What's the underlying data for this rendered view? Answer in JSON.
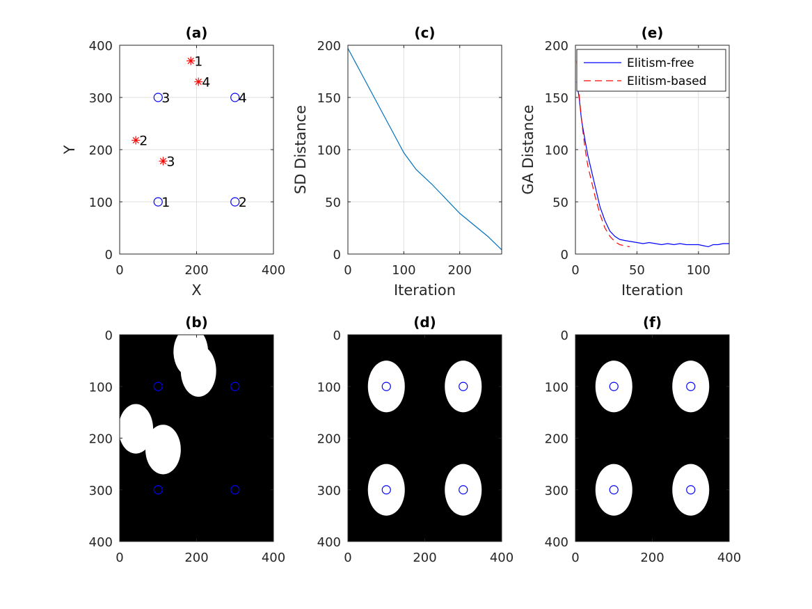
{
  "chart_data": [
    {
      "id": "a",
      "type": "scatter",
      "title": "(a)",
      "xlabel": "X",
      "ylabel": "Y",
      "xlim": [
        0,
        400
      ],
      "ylim": [
        0,
        400
      ],
      "xticks": [
        0,
        200,
        400
      ],
      "yticks": [
        0,
        100,
        200,
        300,
        400
      ],
      "grid": true,
      "series": [
        {
          "marker": "circle",
          "color": "#0000ff",
          "points": [
            {
              "x": 100,
              "y": 100,
              "label": "1"
            },
            {
              "x": 300,
              "y": 100,
              "label": "2"
            },
            {
              "x": 100,
              "y": 300,
              "label": "3"
            },
            {
              "x": 300,
              "y": 300,
              "label": "4"
            }
          ]
        },
        {
          "marker": "asterisk",
          "color": "#ff0000",
          "points": [
            {
              "x": 185,
              "y": 370,
              "label": "1"
            },
            {
              "x": 42,
              "y": 218,
              "label": "2"
            },
            {
              "x": 113,
              "y": 178,
              "label": "3"
            },
            {
              "x": 205,
              "y": 330,
              "label": "4"
            }
          ]
        }
      ]
    },
    {
      "id": "c",
      "type": "line",
      "title": "(c)",
      "xlabel": "Iteration",
      "ylabel": "SD Distance",
      "xlim": [
        0,
        275
      ],
      "ylim": [
        0,
        200
      ],
      "xticks": [
        0,
        100,
        200
      ],
      "yticks": [
        0,
        50,
        100,
        150,
        200
      ],
      "grid": true,
      "series": [
        {
          "color": "#0072bd",
          "x": [
            0,
            25,
            50,
            75,
            100,
            122,
            150,
            200,
            250,
            275
          ],
          "y": [
            197,
            172,
            147,
            122,
            97,
            81,
            67,
            39,
            17,
            4
          ]
        }
      ]
    },
    {
      "id": "e",
      "type": "line",
      "title": "(e)",
      "xlabel": "Iteration",
      "ylabel": "GA Distance",
      "xlim": [
        0,
        125
      ],
      "ylim": [
        0,
        200
      ],
      "xticks": [
        0,
        50,
        100
      ],
      "yticks": [
        0,
        50,
        100,
        150,
        200
      ],
      "grid": true,
      "legend": "top-right",
      "series": [
        {
          "name": "Elitism-free",
          "color": "#0000ff",
          "dash": "solid",
          "x": [
            1,
            3,
            5,
            8,
            10,
            13,
            16,
            20,
            24,
            28,
            32,
            36,
            40,
            45,
            50,
            55,
            60,
            65,
            70,
            75,
            80,
            85,
            90,
            95,
            100,
            104,
            108,
            112,
            116,
            120,
            125
          ],
          "y": [
            165,
            150,
            128,
            108,
            95,
            80,
            65,
            45,
            32,
            22,
            17,
            14,
            13,
            12,
            11,
            10,
            11,
            10,
            9,
            10,
            9,
            10,
            9,
            9,
            9,
            8,
            7,
            9,
            9,
            10,
            10
          ]
        },
        {
          "name": "Elitism-based",
          "color": "#ff0000",
          "dash": "dashed",
          "x": [
            1,
            2,
            4,
            6,
            8,
            10,
            13,
            16,
            20,
            24,
            28,
            32,
            36,
            40,
            44
          ],
          "y": [
            185,
            165,
            140,
            118,
            100,
            85,
            70,
            55,
            38,
            25,
            17,
            12,
            9,
            8,
            7
          ]
        }
      ]
    },
    {
      "id": "b",
      "type": "heatmap",
      "title": "(b)",
      "xlim": [
        0,
        400
      ],
      "ylim": [
        0,
        400
      ],
      "xticks": [
        0,
        200,
        400
      ],
      "yticks": [
        0,
        100,
        200,
        300,
        400
      ],
      "y_reversed": true,
      "background": "#000000",
      "blob_color": "#ffffff",
      "blobs": [
        {
          "cx": 185,
          "cy": 33,
          "rx": 45,
          "ry": 48
        },
        {
          "cx": 205,
          "cy": 70,
          "rx": 46,
          "ry": 50
        },
        {
          "cx": 42,
          "cy": 182,
          "rx": 45,
          "ry": 48
        },
        {
          "cx": 113,
          "cy": 222,
          "rx": 46,
          "ry": 48
        }
      ],
      "points": [
        {
          "x": 100,
          "y": 100
        },
        {
          "x": 300,
          "y": 100
        },
        {
          "x": 100,
          "y": 300
        },
        {
          "x": 300,
          "y": 300
        }
      ],
      "point_color": "#0000ff"
    },
    {
      "id": "d",
      "type": "heatmap",
      "title": "(d)",
      "xlim": [
        0,
        400
      ],
      "ylim": [
        0,
        400
      ],
      "xticks": [
        0,
        200,
        400
      ],
      "yticks": [
        0,
        100,
        200,
        300,
        400
      ],
      "y_reversed": true,
      "background": "#000000",
      "blob_color": "#ffffff",
      "blobs": [
        {
          "cx": 100,
          "cy": 100,
          "rx": 48,
          "ry": 50
        },
        {
          "cx": 300,
          "cy": 100,
          "rx": 48,
          "ry": 50
        },
        {
          "cx": 100,
          "cy": 300,
          "rx": 48,
          "ry": 50
        },
        {
          "cx": 300,
          "cy": 300,
          "rx": 48,
          "ry": 50
        }
      ],
      "points": [
        {
          "x": 100,
          "y": 100
        },
        {
          "x": 300,
          "y": 100
        },
        {
          "x": 100,
          "y": 300
        },
        {
          "x": 300,
          "y": 300
        }
      ],
      "point_color": "#0000ff"
    },
    {
      "id": "f",
      "type": "heatmap",
      "title": "(f)",
      "xlim": [
        0,
        400
      ],
      "ylim": [
        0,
        400
      ],
      "xticks": [
        0,
        200,
        400
      ],
      "yticks": [
        0,
        100,
        200,
        300,
        400
      ],
      "y_reversed": true,
      "background": "#000000",
      "blob_color": "#ffffff",
      "blobs": [
        {
          "cx": 100,
          "cy": 100,
          "rx": 48,
          "ry": 50
        },
        {
          "cx": 300,
          "cy": 100,
          "rx": 48,
          "ry": 50
        },
        {
          "cx": 100,
          "cy": 300,
          "rx": 48,
          "ry": 50
        },
        {
          "cx": 300,
          "cy": 300,
          "rx": 48,
          "ry": 50
        }
      ],
      "points": [
        {
          "x": 100,
          "y": 100
        },
        {
          "x": 300,
          "y": 100
        },
        {
          "x": 100,
          "y": 300
        },
        {
          "x": 300,
          "y": 300
        }
      ],
      "point_color": "#0000ff"
    }
  ]
}
